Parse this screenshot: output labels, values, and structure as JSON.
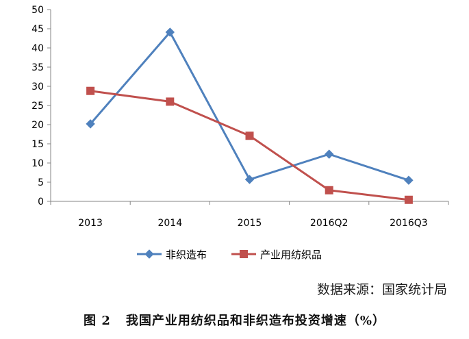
{
  "chart_data": {
    "type": "line",
    "categories": [
      "2013",
      "2014",
      "2015",
      "2016Q2",
      "2016Q3"
    ],
    "ylim": [
      0,
      50
    ],
    "yticks": [
      0,
      5,
      10,
      15,
      20,
      25,
      30,
      35,
      40,
      45,
      50
    ],
    "grid": false,
    "legend_position": "bottom",
    "series": [
      {
        "name": "非织造布",
        "values": [
          20.2,
          44.1,
          5.7,
          12.3,
          5.5
        ],
        "color": "#4F81BD",
        "marker": "diamond"
      },
      {
        "name": "产业用纺织品",
        "values": [
          28.8,
          26.0,
          17.1,
          2.9,
          0.4
        ],
        "color": "#C0504D",
        "marker": "square"
      }
    ]
  },
  "source_note": "数据来源：国家统计局",
  "caption": {
    "figure_label": "图 2",
    "text": "我国产业用纺织品和非织造布投资增速（%）"
  }
}
